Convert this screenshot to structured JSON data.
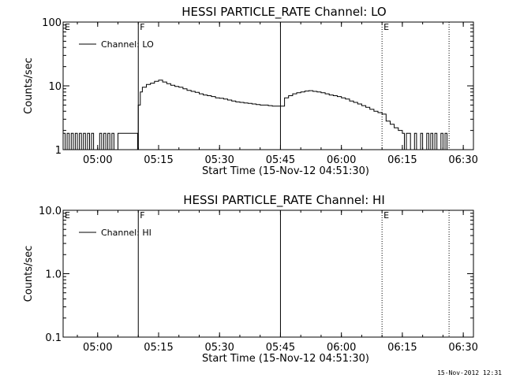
{
  "footer_stamp": "15-Nov-2012 12:31",
  "colors": {
    "background": "#ffffff",
    "foreground": "#000000"
  },
  "chart_data": [
    {
      "type": "line",
      "title": "HESSI PARTICLE_RATE Channel: LO",
      "xlabel": "Start Time (15-Nov-12 04:51:30)",
      "ylabel": "Counts/sec",
      "yscale": "log",
      "ylim": [
        1,
        100
      ],
      "yticks": [
        1,
        10,
        100
      ],
      "ytick_labels": [
        "1",
        "10",
        "100"
      ],
      "xlim": [
        "04:51:30",
        "06:32:30"
      ],
      "xticks": [
        "05:00",
        "05:15",
        "05:30",
        "05:45",
        "06:00",
        "06:15",
        "06:30"
      ],
      "legend": {
        "placement": "top-left",
        "entries": [
          "Channel: LO"
        ]
      },
      "markers": [
        {
          "time": "04:51:30",
          "label": "E",
          "style": "solid"
        },
        {
          "time": "05:10:00",
          "label": "F",
          "style": "solid"
        },
        {
          "time": "05:45:00",
          "label": "",
          "style": "solid"
        },
        {
          "time": "06:10:00",
          "label": "E",
          "style": "dotted"
        },
        {
          "time": "06:26:30",
          "label": "",
          "style": "dotted"
        }
      ],
      "series": [
        {
          "name": "Channel: LO",
          "x": [
            "04:51:30",
            "04:52:00",
            "04:52:30",
            "04:53:00",
            "04:53:30",
            "04:54:00",
            "04:54:30",
            "04:55:00",
            "04:55:30",
            "04:56:00",
            "04:56:30",
            "04:57:00",
            "04:57:30",
            "04:58:00",
            "04:58:30",
            "04:59:00",
            "04:59:30",
            "05:00:00",
            "05:00:30",
            "05:01:00",
            "05:01:30",
            "05:02:00",
            "05:02:30",
            "05:03:00",
            "05:03:30",
            "05:04:00",
            "05:04:30",
            "05:05:00",
            "05:06:00",
            "05:07:00",
            "05:08:00",
            "05:09:00",
            "05:09:50",
            "05:10:00",
            "05:10:30",
            "05:11:00",
            "05:12:00",
            "05:13:00",
            "05:14:00",
            "05:15:00",
            "05:16:00",
            "05:17:00",
            "05:18:00",
            "05:19:00",
            "05:20:00",
            "05:21:00",
            "05:22:00",
            "05:23:00",
            "05:24:00",
            "05:25:00",
            "05:26:00",
            "05:27:00",
            "05:28:00",
            "05:29:00",
            "05:30:00",
            "05:31:00",
            "05:32:00",
            "05:33:00",
            "05:34:00",
            "05:35:00",
            "05:36:00",
            "05:37:00",
            "05:38:00",
            "05:39:00",
            "05:40:00",
            "05:41:00",
            "05:42:00",
            "05:43:00",
            "05:44:00",
            "05:45:00",
            "05:46:00",
            "05:47:00",
            "05:48:00",
            "05:49:00",
            "05:50:00",
            "05:51:00",
            "05:52:00",
            "05:53:00",
            "05:54:00",
            "05:55:00",
            "05:56:00",
            "05:57:00",
            "05:58:00",
            "05:59:00",
            "06:00:00",
            "06:01:00",
            "06:02:00",
            "06:03:00",
            "06:04:00",
            "06:05:00",
            "06:06:00",
            "06:07:00",
            "06:08:00",
            "06:09:00",
            "06:10:00",
            "06:11:00",
            "06:12:00",
            "06:13:00",
            "06:14:00",
            "06:15:00",
            "06:15:30",
            "06:16:00",
            "06:16:30",
            "06:17:00",
            "06:17:30",
            "06:18:00",
            "06:18:30",
            "06:19:00",
            "06:19:30",
            "06:20:00",
            "06:20:30",
            "06:21:00",
            "06:21:30",
            "06:22:00",
            "06:22:30",
            "06:23:00",
            "06:23:30",
            "06:24:00",
            "06:24:30",
            "06:25:00",
            "06:25:30",
            "06:26:00",
            "06:26:30"
          ],
          "values": [
            1.8,
            1.0,
            1.8,
            1.0,
            1.8,
            1.0,
            1.8,
            1.0,
            1.8,
            1.0,
            1.8,
            1.0,
            1.8,
            1.0,
            1.8,
            1.0,
            1.0,
            1.0,
            1.8,
            1.0,
            1.8,
            1.0,
            1.8,
            1.0,
            1.8,
            1.0,
            1.0,
            1.8,
            1.8,
            1.8,
            1.8,
            1.8,
            1.0,
            5.0,
            8.0,
            9.5,
            10.5,
            11.0,
            11.8,
            12.3,
            11.5,
            10.8,
            10.2,
            9.8,
            9.5,
            9.0,
            8.5,
            8.2,
            7.9,
            7.5,
            7.2,
            7.0,
            6.8,
            6.5,
            6.4,
            6.2,
            6.0,
            5.8,
            5.6,
            5.5,
            5.4,
            5.3,
            5.2,
            5.1,
            5.0,
            5.0,
            4.9,
            4.8,
            4.8,
            4.8,
            6.5,
            7.0,
            7.5,
            7.8,
            8.0,
            8.3,
            8.4,
            8.2,
            8.0,
            7.8,
            7.5,
            7.2,
            7.0,
            6.8,
            6.5,
            6.2,
            5.8,
            5.5,
            5.2,
            4.9,
            4.6,
            4.3,
            4.0,
            3.8,
            3.6,
            2.8,
            2.5,
            2.2,
            2.0,
            1.8,
            1.0,
            1.8,
            1.8,
            1.0,
            1.0,
            1.8,
            1.0,
            1.0,
            1.8,
            1.0,
            1.0,
            1.8,
            1.0,
            1.8,
            1.0,
            1.8,
            1.0,
            1.0,
            1.8,
            1.0,
            1.8,
            1.0,
            1.0
          ]
        }
      ]
    },
    {
      "type": "line",
      "title": "HESSI PARTICLE_RATE Channel: HI",
      "xlabel": "Start Time (15-Nov-12 04:51:30)",
      "ylabel": "Counts/sec",
      "yscale": "log",
      "ylim": [
        0.1,
        10
      ],
      "yticks": [
        0.1,
        1,
        10
      ],
      "ytick_labels": [
        "0.1",
        "1.0",
        "10.0"
      ],
      "xlim": [
        "04:51:30",
        "06:32:30"
      ],
      "xticks": [
        "05:00",
        "05:15",
        "05:30",
        "05:45",
        "06:00",
        "06:15",
        "06:30"
      ],
      "legend": {
        "placement": "top-left",
        "entries": [
          "Channel: HI"
        ]
      },
      "markers": [
        {
          "time": "04:51:30",
          "label": "E",
          "style": "solid"
        },
        {
          "time": "05:10:00",
          "label": "F",
          "style": "solid"
        },
        {
          "time": "05:45:00",
          "label": "",
          "style": "solid"
        },
        {
          "time": "06:10:00",
          "label": "E",
          "style": "dotted"
        },
        {
          "time": "06:26:30",
          "label": "",
          "style": "dotted"
        }
      ],
      "series": [
        {
          "name": "Channel: HI",
          "x": [],
          "values": []
        }
      ]
    }
  ]
}
